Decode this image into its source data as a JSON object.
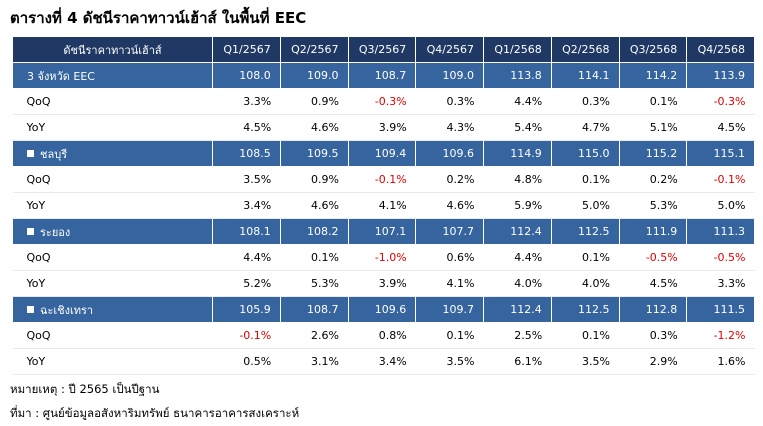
{
  "title": "ตารางที่ 4 ดัชนีราคาทาวน์เฮ้าส์ ในพื้นที่ EEC",
  "table": {
    "header": [
      "ดัชนีราคาทาวน์เฮ้าส์",
      "Q1/2567",
      "Q2/2567",
      "Q3/2567",
      "Q4/2567",
      "Q1/2568",
      "Q2/2568",
      "Q3/2568",
      "Q4/2568"
    ],
    "groups": [
      {
        "name": "3 จังหวัด EEC",
        "values": [
          "108.0",
          "109.0",
          "108.7",
          "109.0",
          "113.8",
          "114.1",
          "114.2",
          "113.9"
        ],
        "rows": [
          {
            "label": "QoQ",
            "values": [
              "3.3%",
              "0.9%",
              "-0.3%",
              "0.3%",
              "4.4%",
              "0.3%",
              "0.1%",
              "-0.3%"
            ]
          },
          {
            "label": "YoY",
            "values": [
              "4.5%",
              "4.6%",
              "3.9%",
              "4.3%",
              "5.4%",
              "4.7%",
              "5.1%",
              "4.5%"
            ]
          }
        ]
      },
      {
        "name": "ชลบุรี",
        "values": [
          "108.5",
          "109.5",
          "109.4",
          "109.6",
          "114.9",
          "115.0",
          "115.2",
          "115.1"
        ],
        "rows": [
          {
            "label": "QoQ",
            "values": [
              "3.5%",
              "0.9%",
              "-0.1%",
              "0.2%",
              "4.8%",
              "0.1%",
              "0.2%",
              "-0.1%"
            ]
          },
          {
            "label": "YoY",
            "values": [
              "3.4%",
              "4.6%",
              "4.1%",
              "4.6%",
              "5.9%",
              "5.0%",
              "5.3%",
              "5.0%"
            ]
          }
        ]
      },
      {
        "name": "ระยอง",
        "values": [
          "108.1",
          "108.2",
          "107.1",
          "107.7",
          "112.4",
          "112.5",
          "111.9",
          "111.3"
        ],
        "rows": [
          {
            "label": "QoQ",
            "values": [
              "4.4%",
              "0.1%",
              "-1.0%",
              "0.6%",
              "4.4%",
              "0.1%",
              "-0.5%",
              "-0.5%"
            ]
          },
          {
            "label": "YoY",
            "values": [
              "5.2%",
              "5.3%",
              "3.9%",
              "4.1%",
              "4.0%",
              "4.0%",
              "4.5%",
              "3.3%"
            ]
          }
        ]
      },
      {
        "name": "ฉะเชิงเทรา",
        "values": [
          "105.9",
          "108.7",
          "109.6",
          "109.7",
          "112.4",
          "112.5",
          "112.8",
          "111.5"
        ],
        "rows": [
          {
            "label": "QoQ",
            "values": [
              "-0.1%",
              "2.6%",
              "0.8%",
              "0.1%",
              "2.5%",
              "0.1%",
              "0.3%",
              "-1.2%"
            ]
          },
          {
            "label": "YoY",
            "values": [
              "0.5%",
              "3.1%",
              "3.4%",
              "3.5%",
              "6.1%",
              "3.5%",
              "2.9%",
              "1.6%"
            ]
          }
        ]
      }
    ]
  },
  "notes": [
    "หมายเหตุ : ปี 2565 เป็นปีฐาน",
    "ที่มา : ศูนย์ข้อมูลอสังหาริมทรัพย์ ธนาคารอาคารสงเคราะห์"
  ]
}
